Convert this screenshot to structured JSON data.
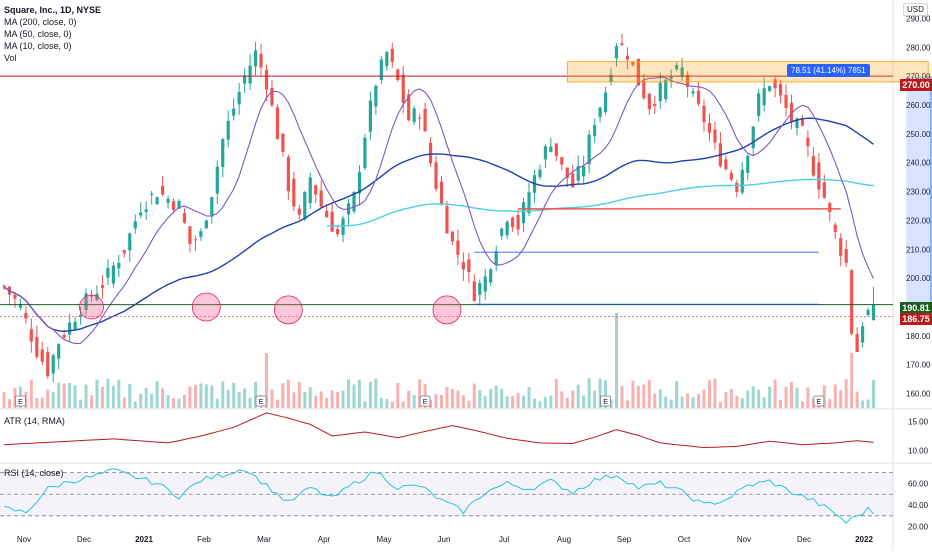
{
  "header": {
    "symbol_line": "Square, Inc., 1D, NYSE",
    "indicators": [
      "MA (200, close, 0)",
      "MA (50, close, 0)",
      "MA (10, close, 0)",
      "Vol"
    ],
    "currency": "USD"
  },
  "atr_label": "ATR (14, RMA)",
  "rsi_label": "RSI (14, close)",
  "price_tags": {
    "resistance": "270.00",
    "last": "190.81",
    "prev": "186.75"
  },
  "measure_label": "78.51 (41.14%) 7851",
  "earnings_marker": "E",
  "colors": {
    "up": "#26a69a",
    "down": "#ef5350",
    "ma200": "#4dd0e1",
    "ma50": "#1e40af",
    "ma10": "#7e57c2",
    "atr": "#b71c1c",
    "rsi": "#26c6da",
    "resistance": "#b71c1c"
  },
  "chart_data": [
    {
      "type": "candlestick",
      "title": "Square, Inc., 1D, NYSE",
      "y_axis": {
        "ticks": [
          290,
          280,
          270,
          260,
          250,
          240,
          230,
          220,
          210,
          200,
          190,
          180,
          170,
          160
        ],
        "range": [
          155,
          295
        ]
      },
      "x_axis": {
        "tick_labels": [
          "Nov",
          "Dec",
          "2021",
          "Feb",
          "Mar",
          "Apr",
          "May",
          "Jun",
          "Jul",
          "Aug",
          "Sep",
          "Oct",
          "Nov",
          "Dec",
          "2022"
        ]
      },
      "price_path": [
        [
          0,
          197
        ],
        [
          3,
          190
        ],
        [
          6,
          175
        ],
        [
          8,
          168
        ],
        [
          10,
          178
        ],
        [
          14,
          190
        ],
        [
          18,
          198
        ],
        [
          22,
          210
        ],
        [
          25,
          225
        ],
        [
          28,
          230
        ],
        [
          32,
          225
        ],
        [
          34,
          212
        ],
        [
          36,
          215
        ],
        [
          38,
          230
        ],
        [
          40,
          248
        ],
        [
          44,
          270
        ],
        [
          46,
          278
        ],
        [
          48,
          268
        ],
        [
          50,
          250
        ],
        [
          52,
          232
        ],
        [
          54,
          220
        ],
        [
          56,
          235
        ],
        [
          58,
          225
        ],
        [
          61,
          215
        ],
        [
          64,
          228
        ],
        [
          66,
          250
        ],
        [
          68,
          268
        ],
        [
          70,
          278
        ],
        [
          72,
          268
        ],
        [
          74,
          255
        ],
        [
          76,
          258
        ],
        [
          78,
          240
        ],
        [
          80,
          225
        ],
        [
          82,
          212
        ],
        [
          84,
          205
        ],
        [
          86,
          195
        ],
        [
          88,
          200
        ],
        [
          90,
          212
        ],
        [
          92,
          222
        ],
        [
          94,
          218
        ],
        [
          96,
          230
        ],
        [
          98,
          240
        ],
        [
          100,
          248
        ],
        [
          102,
          238
        ],
        [
          104,
          232
        ],
        [
          106,
          240
        ],
        [
          108,
          255
        ],
        [
          110,
          265
        ],
        [
          112,
          282
        ],
        [
          114,
          278
        ],
        [
          116,
          268
        ],
        [
          118,
          260
        ],
        [
          120,
          265
        ],
        [
          122,
          270
        ],
        [
          124,
          272
        ],
        [
          126,
          262
        ],
        [
          128,
          255
        ],
        [
          130,
          245
        ],
        [
          132,
          238
        ],
        [
          134,
          232
        ],
        [
          136,
          245
        ],
        [
          138,
          262
        ],
        [
          140,
          268
        ],
        [
          142,
          262
        ],
        [
          144,
          255
        ],
        [
          146,
          250
        ],
        [
          148,
          238
        ],
        [
          150,
          228
        ],
        [
          152,
          215
        ],
        [
          154,
          205
        ],
        [
          155,
          182
        ],
        [
          156,
          175
        ],
        [
          157,
          185
        ],
        [
          158,
          188
        ],
        [
          159,
          190.81
        ]
      ],
      "volume_scale_max": 3
    },
    {
      "type": "line",
      "title": "ATR (14, RMA)",
      "y_axis": {
        "ticks": [
          15,
          10
        ],
        "range": [
          8,
          17
        ]
      },
      "values": [
        [
          0,
          11
        ],
        [
          10,
          11.5
        ],
        [
          20,
          12
        ],
        [
          30,
          11.3
        ],
        [
          36,
          12.5
        ],
        [
          42,
          14
        ],
        [
          48,
          16.5
        ],
        [
          52,
          15.6
        ],
        [
          56,
          14.5
        ],
        [
          60,
          12.5
        ],
        [
          66,
          13.2
        ],
        [
          72,
          12.2
        ],
        [
          78,
          13.5
        ],
        [
          82,
          14.3
        ],
        [
          86,
          13.5
        ],
        [
          92,
          12.1
        ],
        [
          98,
          11.3
        ],
        [
          104,
          11.2
        ],
        [
          108,
          12.3
        ],
        [
          112,
          13.6
        ],
        [
          116,
          12.6
        ],
        [
          120,
          11.3
        ],
        [
          128,
          10.5
        ],
        [
          134,
          10.7
        ],
        [
          140,
          11.6
        ],
        [
          146,
          11
        ],
        [
          152,
          11.3
        ],
        [
          156,
          11.7
        ],
        [
          159,
          11.4
        ]
      ]
    },
    {
      "type": "line",
      "title": "RSI (14, close)",
      "y_axis": {
        "ticks": [
          60,
          40,
          20
        ],
        "range": [
          15,
          78
        ],
        "bands": [
          70,
          50,
          30
        ]
      },
      "values": [
        [
          0,
          37
        ],
        [
          4,
          33
        ],
        [
          8,
          55
        ],
        [
          12,
          62
        ],
        [
          16,
          66
        ],
        [
          20,
          72
        ],
        [
          24,
          66
        ],
        [
          28,
          60
        ],
        [
          32,
          48
        ],
        [
          36,
          63
        ],
        [
          40,
          68
        ],
        [
          44,
          74
        ],
        [
          48,
          58
        ],
        [
          52,
          42
        ],
        [
          56,
          56
        ],
        [
          60,
          46
        ],
        [
          64,
          60
        ],
        [
          68,
          71
        ],
        [
          72,
          56
        ],
        [
          76,
          58
        ],
        [
          80,
          44
        ],
        [
          84,
          34
        ],
        [
          88,
          52
        ],
        [
          92,
          60
        ],
        [
          96,
          55
        ],
        [
          100,
          62
        ],
        [
          104,
          52
        ],
        [
          108,
          63
        ],
        [
          112,
          68
        ],
        [
          116,
          56
        ],
        [
          120,
          60
        ],
        [
          124,
          52
        ],
        [
          128,
          40
        ],
        [
          132,
          45
        ],
        [
          136,
          58
        ],
        [
          140,
          62
        ],
        [
          144,
          52
        ],
        [
          148,
          44
        ],
        [
          152,
          32
        ],
        [
          154,
          24
        ],
        [
          156,
          30
        ],
        [
          158,
          36
        ],
        [
          159,
          33
        ]
      ]
    }
  ]
}
